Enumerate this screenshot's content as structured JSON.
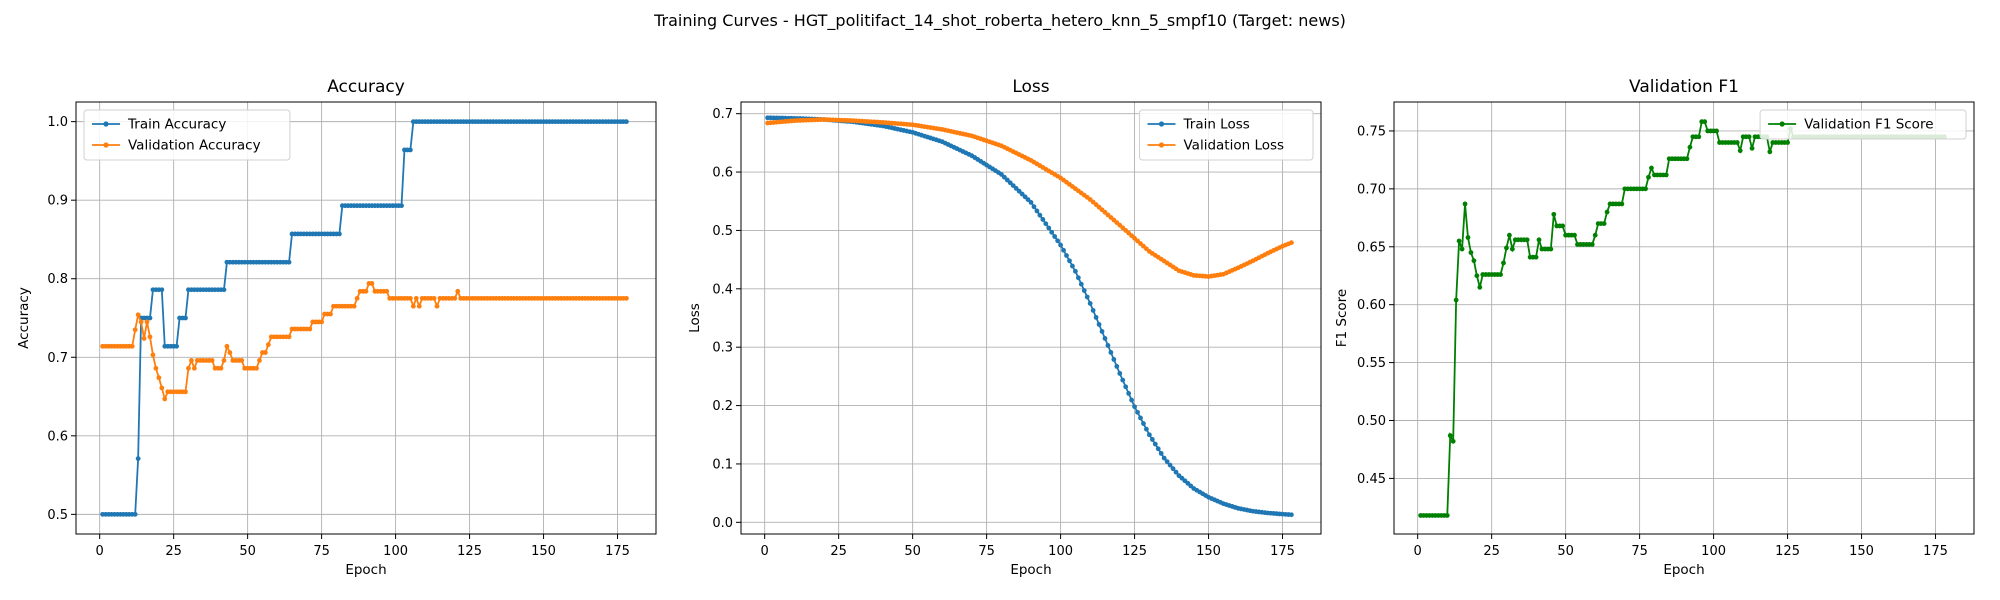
{
  "figure_title": "Training Curves - HGT_politifact_14_shot_roberta_hetero_knn_5_smpf10 (Target: news)",
  "chart_data": [
    {
      "type": "line",
      "title": "Accuracy",
      "xlabel": "Epoch",
      "ylabel": "Accuracy",
      "xlim": [
        -8,
        188
      ],
      "ylim": [
        0.475,
        1.025
      ],
      "xticks": [
        0,
        25,
        50,
        75,
        100,
        125,
        150,
        175
      ],
      "xtick_labels": [
        "0",
        "25",
        "50",
        "75",
        "100",
        "125",
        "150",
        "175"
      ],
      "yticks": [
        0.5,
        0.6,
        0.7,
        0.8,
        0.9,
        1.0
      ],
      "ytick_labels": [
        "0.5",
        "0.6",
        "0.7",
        "0.8",
        "0.9",
        "1.0"
      ],
      "grid": true,
      "legend": "upper-left",
      "series": [
        {
          "name": "Train Accuracy",
          "color": "#1f77b4",
          "points": [
            [
              1,
              0.5
            ],
            [
              12,
              0.5
            ],
            [
              13,
              0.571
            ],
            [
              14,
              0.75
            ],
            [
              17,
              0.75
            ],
            [
              18,
              0.786
            ],
            [
              21,
              0.786
            ],
            [
              22,
              0.714
            ],
            [
              26,
              0.714
            ],
            [
              27,
              0.75
            ],
            [
              29,
              0.75
            ],
            [
              30,
              0.786
            ],
            [
              42,
              0.786
            ],
            [
              43,
              0.821
            ],
            [
              64,
              0.821
            ],
            [
              65,
              0.857
            ],
            [
              81,
              0.857
            ],
            [
              82,
              0.893
            ],
            [
              102,
              0.893
            ],
            [
              103,
              0.964
            ],
            [
              105,
              0.964
            ],
            [
              106,
              1.0
            ],
            [
              178,
              1.0
            ]
          ]
        },
        {
          "name": "Validation Accuracy",
          "color": "#ff7f0e",
          "points": [
            [
              1,
              0.714
            ],
            [
              11,
              0.714
            ],
            [
              12,
              0.735
            ],
            [
              13,
              0.754
            ],
            [
              14,
              0.745
            ],
            [
              15,
              0.724
            ],
            [
              16,
              0.745
            ],
            [
              17,
              0.726
            ],
            [
              18,
              0.703
            ],
            [
              19,
              0.686
            ],
            [
              20,
              0.674
            ],
            [
              21,
              0.661
            ],
            [
              22,
              0.647
            ],
            [
              23,
              0.656
            ],
            [
              29,
              0.656
            ],
            [
              30,
              0.686
            ],
            [
              31,
              0.696
            ],
            [
              32,
              0.686
            ],
            [
              33,
              0.696
            ],
            [
              38,
              0.696
            ],
            [
              39,
              0.686
            ],
            [
              41,
              0.686
            ],
            [
              42,
              0.696
            ],
            [
              43,
              0.714
            ],
            [
              44,
              0.706
            ],
            [
              45,
              0.696
            ],
            [
              48,
              0.696
            ],
            [
              49,
              0.686
            ],
            [
              53,
              0.686
            ],
            [
              54,
              0.696
            ],
            [
              55,
              0.706
            ],
            [
              56,
              0.706
            ],
            [
              57,
              0.716
            ],
            [
              58,
              0.726
            ],
            [
              64,
              0.726
            ],
            [
              65,
              0.736
            ],
            [
              71,
              0.736
            ],
            [
              72,
              0.745
            ],
            [
              75,
              0.745
            ],
            [
              76,
              0.755
            ],
            [
              78,
              0.755
            ],
            [
              79,
              0.765
            ],
            [
              86,
              0.765
            ],
            [
              87,
              0.775
            ],
            [
              88,
              0.784
            ],
            [
              90,
              0.784
            ],
            [
              91,
              0.794
            ],
            [
              92,
              0.794
            ],
            [
              93,
              0.784
            ],
            [
              97,
              0.784
            ],
            [
              98,
              0.775
            ],
            [
              105,
              0.775
            ],
            [
              106,
              0.765
            ],
            [
              107,
              0.775
            ],
            [
              108,
              0.765
            ],
            [
              109,
              0.775
            ],
            [
              113,
              0.775
            ],
            [
              114,
              0.765
            ],
            [
              115,
              0.775
            ],
            [
              120,
              0.775
            ],
            [
              121,
              0.784
            ],
            [
              122,
              0.775
            ],
            [
              178,
              0.775
            ]
          ]
        }
      ]
    },
    {
      "type": "line",
      "title": "Loss",
      "xlabel": "Epoch",
      "ylabel": "Loss",
      "xlim": [
        -8,
        188
      ],
      "ylim": [
        -0.02,
        0.72
      ],
      "xticks": [
        0,
        25,
        50,
        75,
        100,
        125,
        150,
        175
      ],
      "xtick_labels": [
        "0",
        "25",
        "50",
        "75",
        "100",
        "125",
        "150",
        "175"
      ],
      "yticks": [
        0.0,
        0.1,
        0.2,
        0.3,
        0.4,
        0.5,
        0.6,
        0.7
      ],
      "ytick_labels": [
        "0.0",
        "0.1",
        "0.2",
        "0.3",
        "0.4",
        "0.5",
        "0.6",
        "0.7"
      ],
      "grid": true,
      "legend": "upper-right",
      "series": [
        {
          "name": "Train Loss",
          "color": "#1f77b4",
          "points": [
            [
              1,
              0.693
            ],
            [
              10,
              0.692
            ],
            [
              20,
              0.69
            ],
            [
              30,
              0.686
            ],
            [
              40,
              0.679
            ],
            [
              50,
              0.668
            ],
            [
              60,
              0.652
            ],
            [
              70,
              0.628
            ],
            [
              80,
              0.596
            ],
            [
              90,
              0.548
            ],
            [
              100,
              0.475
            ],
            [
              105,
              0.43
            ],
            [
              110,
              0.375
            ],
            [
              115,
              0.315
            ],
            [
              120,
              0.255
            ],
            [
              125,
              0.198
            ],
            [
              130,
              0.15
            ],
            [
              135,
              0.11
            ],
            [
              140,
              0.08
            ],
            [
              145,
              0.058
            ],
            [
              150,
              0.043
            ],
            [
              155,
              0.032
            ],
            [
              160,
              0.024
            ],
            [
              165,
              0.019
            ],
            [
              170,
              0.016
            ],
            [
              175,
              0.014
            ],
            [
              178,
              0.013
            ]
          ]
        },
        {
          "name": "Validation Loss",
          "color": "#ff7f0e",
          "points": [
            [
              1,
              0.684
            ],
            [
              10,
              0.688
            ],
            [
              20,
              0.69
            ],
            [
              30,
              0.688
            ],
            [
              40,
              0.685
            ],
            [
              50,
              0.681
            ],
            [
              60,
              0.673
            ],
            [
              70,
              0.662
            ],
            [
              80,
              0.645
            ],
            [
              90,
              0.62
            ],
            [
              100,
              0.59
            ],
            [
              110,
              0.553
            ],
            [
              120,
              0.509
            ],
            [
              130,
              0.464
            ],
            [
              140,
              0.431
            ],
            [
              145,
              0.423
            ],
            [
              150,
              0.421
            ],
            [
              155,
              0.425
            ],
            [
              160,
              0.436
            ],
            [
              165,
              0.448
            ],
            [
              170,
              0.461
            ],
            [
              175,
              0.473
            ],
            [
              178,
              0.479
            ]
          ]
        }
      ]
    },
    {
      "type": "line",
      "title": "Validation F1",
      "xlabel": "Epoch",
      "ylabel": "F1 Score",
      "xlim": [
        -8,
        188
      ],
      "ylim": [
        0.402,
        0.775
      ],
      "xticks": [
        0,
        25,
        50,
        75,
        100,
        125,
        150,
        175
      ],
      "xtick_labels": [
        "0",
        "25",
        "50",
        "75",
        "100",
        "125",
        "150",
        "175"
      ],
      "yticks": [
        0.45,
        0.5,
        0.55,
        0.6,
        0.65,
        0.7,
        0.75
      ],
      "ytick_labels": [
        "0.45",
        "0.50",
        "0.55",
        "0.60",
        "0.65",
        "0.70",
        "0.75"
      ],
      "grid": true,
      "legend": "upper-right",
      "series": [
        {
          "name": "Validation F1 Score",
          "color": "#008000",
          "points": [
            [
              1,
              0.418
            ],
            [
              10,
              0.418
            ],
            [
              11,
              0.487
            ],
            [
              12,
              0.482
            ],
            [
              13,
              0.604
            ],
            [
              14,
              0.655
            ],
            [
              15,
              0.648
            ],
            [
              16,
              0.687
            ],
            [
              17,
              0.658
            ],
            [
              18,
              0.645
            ],
            [
              19,
              0.638
            ],
            [
              20,
              0.625
            ],
            [
              21,
              0.615
            ],
            [
              22,
              0.626
            ],
            [
              28,
              0.626
            ],
            [
              29,
              0.636
            ],
            [
              30,
              0.649
            ],
            [
              31,
              0.66
            ],
            [
              32,
              0.648
            ],
            [
              33,
              0.656
            ],
            [
              37,
              0.656
            ],
            [
              38,
              0.641
            ],
            [
              40,
              0.641
            ],
            [
              41,
              0.656
            ],
            [
              42,
              0.648
            ],
            [
              45,
              0.648
            ],
            [
              46,
              0.678
            ],
            [
              47,
              0.668
            ],
            [
              49,
              0.668
            ],
            [
              50,
              0.66
            ],
            [
              53,
              0.66
            ],
            [
              54,
              0.652
            ],
            [
              59,
              0.652
            ],
            [
              60,
              0.66
            ],
            [
              61,
              0.67
            ],
            [
              63,
              0.67
            ],
            [
              64,
              0.68
            ],
            [
              65,
              0.687
            ],
            [
              69,
              0.687
            ],
            [
              70,
              0.7
            ],
            [
              77,
              0.7
            ],
            [
              78,
              0.71
            ],
            [
              79,
              0.718
            ],
            [
              80,
              0.712
            ],
            [
              84,
              0.712
            ],
            [
              85,
              0.726
            ],
            [
              91,
              0.726
            ],
            [
              92,
              0.736
            ],
            [
              93,
              0.745
            ],
            [
              95,
              0.745
            ],
            [
              96,
              0.758
            ],
            [
              97,
              0.758
            ],
            [
              98,
              0.75
            ],
            [
              101,
              0.75
            ],
            [
              102,
              0.74
            ],
            [
              108,
              0.74
            ],
            [
              109,
              0.733
            ],
            [
              110,
              0.745
            ],
            [
              112,
              0.745
            ],
            [
              113,
              0.735
            ],
            [
              114,
              0.745
            ],
            [
              118,
              0.745
            ],
            [
              119,
              0.732
            ],
            [
              120,
              0.74
            ],
            [
              125,
              0.74
            ],
            [
              126,
              0.752
            ],
            [
              127,
              0.745
            ],
            [
              178,
              0.745
            ]
          ]
        }
      ]
    }
  ]
}
